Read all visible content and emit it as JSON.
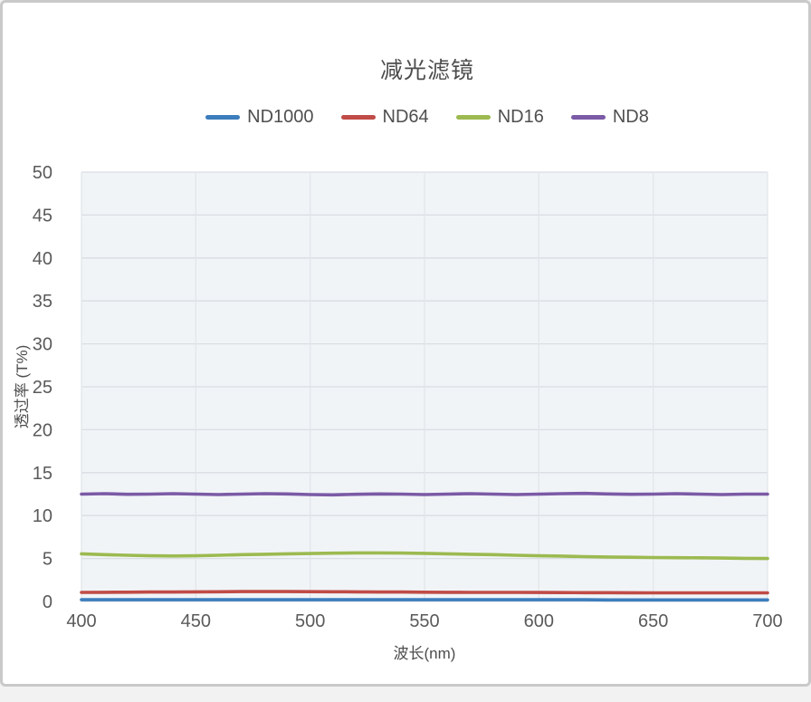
{
  "frame": {
    "background": "#ffffff",
    "border_color": "#c9c9c9",
    "outer_background": "#f2f2f2"
  },
  "chart_data": {
    "type": "line",
    "title": "减光滤镜",
    "xlabel": "波长(nm)",
    "ylabel": "透过率 (T%)",
    "xlim": [
      400,
      700
    ],
    "ylim": [
      0,
      50
    ],
    "x_ticks": [
      400,
      450,
      500,
      550,
      600,
      650,
      700
    ],
    "y_ticks": [
      0,
      5,
      10,
      15,
      20,
      25,
      30,
      35,
      40,
      45,
      50
    ],
    "grid": true,
    "legend_position": "top",
    "plot_background": "#f1f4f7",
    "h_gridline_color": "#d9dee3",
    "v_gridline_color": "#e2e6ea",
    "x": [
      400,
      410,
      420,
      430,
      440,
      450,
      460,
      470,
      480,
      490,
      500,
      510,
      520,
      530,
      540,
      550,
      560,
      570,
      580,
      590,
      600,
      610,
      620,
      630,
      640,
      650,
      660,
      670,
      680,
      690,
      700
    ],
    "series": [
      {
        "name": "ND1000",
        "color": "#3c7dbd",
        "values": [
          0.2,
          0.2,
          0.2,
          0.2,
          0.2,
          0.2,
          0.2,
          0.2,
          0.2,
          0.2,
          0.2,
          0.2,
          0.2,
          0.2,
          0.2,
          0.2,
          0.2,
          0.2,
          0.2,
          0.2,
          0.2,
          0.2,
          0.2,
          0.18,
          0.18,
          0.18,
          0.18,
          0.18,
          0.18,
          0.18,
          0.18
        ]
      },
      {
        "name": "ND64",
        "color": "#c04b47",
        "values": [
          1.05,
          1.07,
          1.08,
          1.1,
          1.1,
          1.12,
          1.13,
          1.15,
          1.15,
          1.15,
          1.14,
          1.13,
          1.12,
          1.1,
          1.1,
          1.08,
          1.07,
          1.06,
          1.05,
          1.05,
          1.04,
          1.03,
          1.02,
          1.02,
          1.01,
          1.0,
          1.0,
          1.0,
          1.0,
          1.0,
          1.0
        ]
      },
      {
        "name": "ND16",
        "color": "#9cba50",
        "values": [
          5.55,
          5.45,
          5.38,
          5.32,
          5.3,
          5.32,
          5.38,
          5.45,
          5.5,
          5.55,
          5.58,
          5.62,
          5.65,
          5.65,
          5.63,
          5.6,
          5.55,
          5.5,
          5.45,
          5.38,
          5.32,
          5.28,
          5.22,
          5.18,
          5.15,
          5.12,
          5.1,
          5.08,
          5.05,
          5.02,
          5.0
        ]
      },
      {
        "name": "ND8",
        "color": "#7b5aa6",
        "values": [
          12.5,
          12.55,
          12.48,
          12.5,
          12.55,
          12.5,
          12.45,
          12.5,
          12.55,
          12.52,
          12.45,
          12.42,
          12.48,
          12.52,
          12.5,
          12.45,
          12.5,
          12.55,
          12.5,
          12.45,
          12.5,
          12.55,
          12.58,
          12.52,
          12.48,
          12.5,
          12.55,
          12.5,
          12.45,
          12.5,
          12.5
        ]
      }
    ]
  }
}
